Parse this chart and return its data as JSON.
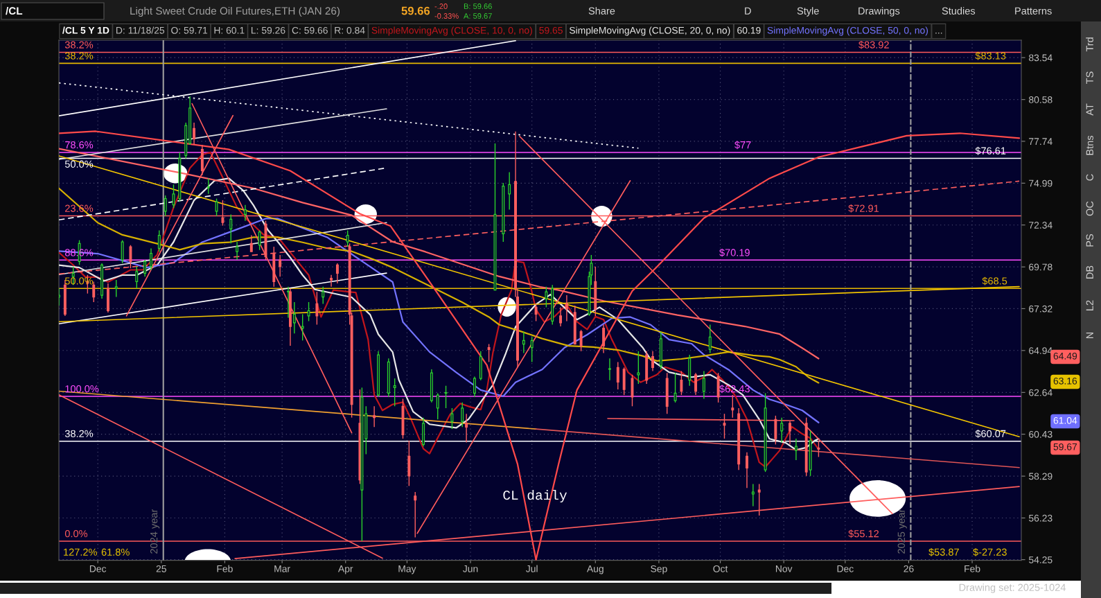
{
  "chart_data": {
    "type": "candlestick",
    "title": "Light Sweet Crude Oil Futures,ETH (JAN 26)",
    "subtitle": "/CL 5 Y 1D",
    "x": [
      "2024-11-12",
      "2024-11-15",
      "2024-11-19",
      "2024-11-22",
      "2024-11-26",
      "2024-11-29",
      "2024-12-03",
      "2024-12-06",
      "2024-12-10",
      "2024-12-13",
      "2024-12-17",
      "2024-12-20",
      "2024-12-24",
      "2024-12-27",
      "2024-12-31",
      "2025-01-03",
      "2025-01-07",
      "2025-01-10",
      "2025-01-13",
      "2025-01-15",
      "2025-01-17",
      "2025-01-21",
      "2025-01-24",
      "2025-01-28",
      "2025-01-31",
      "2025-02-04",
      "2025-02-07",
      "2025-02-11",
      "2025-02-14",
      "2025-02-18",
      "2025-02-21",
      "2025-02-25",
      "2025-02-28",
      "2025-03-04",
      "2025-03-05",
      "2025-03-07",
      "2025-03-11",
      "2025-03-14",
      "2025-03-18",
      "2025-03-21",
      "2025-03-25",
      "2025-03-28",
      "2025-04-02",
      "2025-04-03",
      "2025-04-04",
      "2025-04-08",
      "2025-04-09",
      "2025-04-11",
      "2025-04-15",
      "2025-04-17",
      "2025-04-22",
      "2025-04-25",
      "2025-04-29",
      "2025-05-02",
      "2025-05-05",
      "2025-05-09",
      "2025-05-13",
      "2025-05-16",
      "2025-05-20",
      "2025-05-23",
      "2025-05-28",
      "2025-05-30",
      "2025-06-03",
      "2025-06-06",
      "2025-06-10",
      "2025-06-13",
      "2025-06-17",
      "2025-06-20",
      "2025-06-23",
      "2025-06-24",
      "2025-06-27",
      "2025-07-01",
      "2025-07-03",
      "2025-07-08",
      "2025-07-11",
      "2025-07-15",
      "2025-07-18",
      "2025-07-22",
      "2025-07-25",
      "2025-07-29",
      "2025-07-30",
      "2025-08-01",
      "2025-08-05",
      "2025-08-08",
      "2025-08-12",
      "2025-08-15",
      "2025-08-19",
      "2025-08-22",
      "2025-08-26",
      "2025-08-29",
      "2025-09-02",
      "2025-09-05",
      "2025-09-09",
      "2025-09-12",
      "2025-09-16",
      "2025-09-19",
      "2025-09-23",
      "2025-09-26",
      "2025-09-30",
      "2025-10-03",
      "2025-10-07",
      "2025-10-10",
      "2025-10-14",
      "2025-10-17",
      "2025-10-20",
      "2025-10-23",
      "2025-10-28",
      "2025-10-31",
      "2025-11-04",
      "2025-11-07",
      "2025-11-12",
      "2025-11-14",
      "2025-11-18"
    ],
    "ohlc": [
      [
        68.0,
        68.5,
        67.5,
        68.1
      ],
      [
        68.7,
        69.0,
        66.9,
        67.0
      ],
      [
        69.2,
        69.8,
        68.7,
        69.4
      ],
      [
        70.1,
        71.4,
        69.9,
        71.2
      ],
      [
        68.9,
        69.3,
        68.2,
        68.8
      ],
      [
        68.7,
        68.9,
        67.7,
        68.0
      ],
      [
        68.1,
        70.0,
        67.9,
        69.9
      ],
      [
        68.5,
        68.8,
        67.1,
        67.2
      ],
      [
        68.5,
        69.0,
        68.0,
        68.6
      ],
      [
        70.2,
        71.4,
        70.0,
        71.3
      ],
      [
        71.0,
        71.1,
        69.7,
        70.1
      ],
      [
        68.9,
        69.8,
        68.5,
        69.5
      ],
      [
        69.4,
        70.2,
        69.2,
        70.1
      ],
      [
        69.8,
        70.9,
        69.6,
        70.6
      ],
      [
        70.9,
        72.0,
        70.7,
        71.7
      ],
      [
        73.2,
        74.2,
        72.9,
        74.0
      ],
      [
        73.6,
        74.9,
        73.4,
        74.3
      ],
      [
        74.0,
        77.0,
        73.8,
        76.6
      ],
      [
        76.8,
        79.0,
        76.6,
        78.8
      ],
      [
        77.6,
        80.8,
        77.5,
        80.0
      ],
      [
        78.6,
        79.0,
        77.5,
        77.9
      ],
      [
        77.2,
        77.5,
        75.5,
        75.8
      ],
      [
        74.7,
        75.3,
        74.3,
        74.7
      ],
      [
        73.2,
        74.0,
        72.9,
        73.8
      ],
      [
        72.8,
        73.9,
        72.3,
        72.5
      ],
      [
        72.1,
        73.0,
        71.2,
        72.7
      ],
      [
        70.7,
        71.3,
        70.2,
        71.0
      ],
      [
        73.0,
        73.6,
        72.6,
        73.3
      ],
      [
        71.2,
        71.7,
        70.7,
        70.7
      ],
      [
        71.1,
        72.0,
        70.8,
        71.9
      ],
      [
        72.4,
        72.6,
        70.2,
        70.4
      ],
      [
        70.6,
        71.0,
        68.6,
        68.9
      ],
      [
        70.2,
        70.5,
        69.2,
        69.8
      ],
      [
        68.3,
        68.6,
        66.8,
        68.3
      ],
      [
        68.3,
        68.5,
        65.2,
        66.3
      ],
      [
        66.5,
        67.7,
        65.9,
        67.0
      ],
      [
        66.2,
        67.0,
        65.5,
        66.3
      ],
      [
        66.9,
        67.7,
        66.6,
        67.2
      ],
      [
        67.6,
        68.3,
        66.4,
        66.9
      ],
      [
        68.0,
        68.6,
        67.6,
        68.3
      ],
      [
        69.1,
        69.3,
        68.6,
        69.0
      ],
      [
        69.9,
        70.0,
        68.8,
        69.4
      ],
      [
        71.3,
        72.0,
        71.0,
        71.7
      ],
      [
        71.0,
        71.2,
        66.4,
        67.0
      ],
      [
        66.9,
        67.1,
        61.3,
        62.0
      ],
      [
        61.0,
        62.8,
        57.9,
        58.1
      ],
      [
        57.6,
        62.9,
        55.12,
        62.4
      ],
      [
        60.2,
        61.9,
        59.4,
        61.5
      ],
      [
        61.4,
        61.9,
        60.8,
        61.3
      ],
      [
        62.5,
        64.9,
        62.4,
        64.7
      ],
      [
        62.6,
        64.5,
        62.4,
        64.3
      ],
      [
        62.9,
        63.4,
        61.9,
        63.0
      ],
      [
        61.9,
        62.3,
        60.2,
        60.4
      ],
      [
        59.3,
        60.1,
        57.8,
        58.3
      ],
      [
        57.3,
        57.5,
        55.3,
        57.1
      ],
      [
        59.9,
        61.3,
        59.8,
        61.0
      ],
      [
        62.2,
        63.9,
        62.1,
        63.7
      ],
      [
        61.8,
        62.6,
        61.2,
        62.5
      ],
      [
        62.6,
        63.0,
        61.8,
        62.6
      ],
      [
        61.1,
        61.8,
        60.7,
        61.5
      ],
      [
        61.1,
        62.1,
        60.8,
        61.8
      ],
      [
        61.0,
        61.5,
        60.0,
        60.8
      ],
      [
        62.6,
        63.5,
        62.4,
        63.4
      ],
      [
        63.4,
        64.9,
        63.3,
        64.6
      ],
      [
        65.1,
        65.3,
        64.3,
        65.0
      ],
      [
        68.4,
        77.6,
        68.4,
        73.0
      ],
      [
        71.8,
        75.0,
        71.3,
        74.8
      ],
      [
        74.3,
        75.7,
        73.3,
        74.9
      ],
      [
        75.1,
        78.4,
        68.0,
        68.5
      ],
      [
        68.0,
        68.5,
        64.0,
        64.4
      ],
      [
        65.3,
        66.0,
        64.8,
        65.5
      ],
      [
        65.1,
        65.7,
        64.3,
        65.5
      ],
      [
        67.4,
        67.6,
        66.6,
        67.0
      ],
      [
        67.9,
        68.6,
        67.4,
        68.3
      ],
      [
        66.6,
        68.7,
        66.4,
        68.5
      ],
      [
        66.9,
        67.4,
        66.3,
        66.5
      ],
      [
        67.6,
        68.1,
        66.6,
        67.3
      ],
      [
        67.1,
        67.5,
        65.3,
        65.3
      ],
      [
        66.0,
        66.1,
        64.9,
        65.2
      ],
      [
        67.0,
        69.5,
        66.9,
        69.2
      ],
      [
        69.3,
        70.5,
        68.7,
        70.0
      ],
      [
        68.9,
        69.8,
        66.9,
        67.3
      ],
      [
        66.2,
        66.4,
        64.8,
        65.2
      ],
      [
        63.9,
        64.5,
        63.3,
        63.9
      ],
      [
        64.0,
        64.3,
        62.8,
        63.2
      ],
      [
        63.9,
        64.0,
        62.5,
        62.8
      ],
      [
        63.4,
        63.6,
        61.9,
        62.4
      ],
      [
        63.6,
        64.9,
        63.1,
        63.7
      ],
      [
        64.7,
        64.9,
        63.1,
        63.3
      ],
      [
        64.6,
        64.9,
        63.8,
        64.0
      ],
      [
        64.1,
        66.0,
        63.9,
        65.6
      ],
      [
        63.4,
        63.7,
        61.5,
        61.9
      ],
      [
        62.2,
        63.7,
        62.1,
        62.6
      ],
      [
        63.3,
        63.8,
        62.5,
        62.7
      ],
      [
        63.3,
        64.7,
        63.0,
        64.5
      ],
      [
        63.6,
        63.7,
        62.5,
        62.7
      ],
      [
        62.7,
        63.8,
        62.3,
        63.4
      ],
      [
        65.0,
        66.4,
        64.8,
        65.7
      ],
      [
        63.5,
        63.7,
        62.1,
        62.4
      ],
      [
        61.0,
        61.5,
        60.2,
        60.9
      ],
      [
        61.8,
        62.5,
        61.3,
        61.7
      ],
      [
        61.5,
        61.8,
        58.6,
        58.9
      ],
      [
        59.3,
        59.5,
        57.7,
        58.7
      ],
      [
        57.4,
        57.9,
        56.8,
        57.5
      ],
      [
        57.6,
        57.9,
        56.35,
        57.5
      ],
      [
        58.6,
        62.6,
        58.5,
        61.8
      ],
      [
        61.2,
        61.4,
        59.9,
        60.2
      ],
      [
        60.6,
        61.3,
        60.0,
        61.0
      ],
      [
        61.0,
        61.1,
        59.9,
        60.6
      ],
      [
        59.6,
        60.2,
        59.1,
        59.8
      ],
      [
        61.0,
        61.3,
        58.3,
        58.5
      ],
      [
        58.6,
        60.6,
        58.3,
        60.1
      ],
      [
        59.71,
        60.1,
        59.26,
        59.66
      ]
    ],
    "series": [
      {
        "type": "line",
        "name": "SimpleMovingAvg (CLOSE, 10, 0, no)",
        "color": "#c0161c",
        "x": [
          "2024-11-12",
          "2024-11-19",
          "2024-11-25",
          "2024-12-01",
          "2024-12-06",
          "2024-12-17",
          "2024-12-23",
          "2024-12-30",
          "2025-01-07",
          "2025-01-15",
          "2025-01-21",
          "2025-01-25",
          "2025-01-30",
          "2025-02-07",
          "2025-02-12",
          "2025-02-15",
          "2025-02-20",
          "2025-02-27",
          "2025-03-05",
          "2025-03-14",
          "2025-03-20",
          "2025-03-26",
          "2025-04-06",
          "2025-04-12",
          "2025-04-15",
          "2025-04-19",
          "2025-04-24",
          "2025-04-29",
          "2025-05-03",
          "2025-05-09",
          "2025-05-12",
          "2025-05-17",
          "2025-05-22",
          "2025-05-27",
          "2025-06-01",
          "2025-06-06",
          "2025-06-09",
          "2025-06-12",
          "2025-06-16",
          "2025-06-21",
          "2025-06-23",
          "2025-06-27",
          "2025-06-29",
          "2025-07-01",
          "2025-07-03",
          "2025-07-07",
          "2025-07-12",
          "2025-07-18",
          "2025-07-23",
          "2025-07-28",
          "2025-08-01",
          "2025-08-05",
          "2025-08-09",
          "2025-08-17",
          "2025-08-23",
          "2025-08-31",
          "2025-09-04",
          "2025-09-12",
          "2025-09-18",
          "2025-09-23",
          "2025-09-27",
          "2025-10-02",
          "2025-10-08",
          "2025-10-14",
          "2025-10-20",
          "2025-10-23",
          "2025-10-30",
          "2025-11-02",
          "2025-11-05",
          "2025-11-10",
          "2025-11-14",
          "2025-11-18"
        ],
        "values": [
          70.65,
          69.89,
          69.17,
          69.17,
          68.88,
          69.6,
          69.6,
          70.52,
          73.44,
          75.97,
          76.85,
          77.01,
          75.63,
          73.44,
          72.66,
          72.34,
          71.73,
          71.58,
          70.65,
          69.29,
          66.84,
          68.4,
          68.26,
          65.56,
          62.51,
          61.68,
          62.0,
          62.12,
          61.21,
          59.68,
          59.43,
          60.44,
          61.46,
          62.05,
          61.86,
          61.72,
          62.77,
          64.85,
          66.97,
          68.4,
          70.13,
          70.04,
          69.17,
          68.29,
          67.26,
          66.56,
          66.86,
          67.57,
          66.56,
          66.13,
          66.86,
          66.69,
          65.56,
          63.73,
          63.19,
          63.6,
          64.02,
          63.74,
          63.19,
          63.47,
          63.88,
          63.33,
          62.51,
          61.21,
          58.99,
          58.75,
          59.59,
          60.22,
          60.82,
          60.45,
          60.22,
          59.65
        ]
      },
      {
        "type": "line",
        "name": "SimpleMovingAvg (CLOSE, 20, 0, no)",
        "color": "#e6e6e6",
        "x": [
          "2024-11-12",
          "2024-11-22",
          "2024-12-04",
          "2024-12-13",
          "2024-12-20",
          "2024-12-30",
          "2025-01-07",
          "2025-01-17",
          "2025-01-27",
          "2025-02-03",
          "2025-02-10",
          "2025-02-15",
          "2025-02-22",
          "2025-02-27",
          "2025-03-05",
          "2025-03-11",
          "2025-03-17",
          "2025-04-04",
          "2025-04-13",
          "2025-04-17",
          "2025-04-24",
          "2025-04-27",
          "2025-05-04",
          "2025-05-12",
          "2025-05-25",
          "2025-05-31",
          "2025-06-06",
          "2025-06-12",
          "2025-06-18",
          "2025-06-23",
          "2025-07-03",
          "2025-07-10",
          "2025-07-18",
          "2025-07-23",
          "2025-07-30",
          "2025-08-03",
          "2025-08-12",
          "2025-08-24",
          "2025-08-28",
          "2025-09-06",
          "2025-09-17",
          "2025-09-26",
          "2025-10-05",
          "2025-10-12",
          "2025-10-20",
          "2025-10-25",
          "2025-11-02",
          "2025-11-07",
          "2025-11-12",
          "2025-11-16",
          "2025-11-18"
        ],
        "values": [
          69.89,
          69.74,
          68.94,
          69.29,
          69.29,
          69.89,
          71.29,
          73.89,
          75.15,
          75.3,
          74.52,
          73.58,
          72.04,
          71.29,
          70.34,
          69.29,
          68.44,
          67.98,
          66.97,
          65.85,
          64.85,
          63.33,
          61.61,
          60.95,
          60.76,
          61.21,
          62.12,
          63.05,
          64.71,
          66.27,
          67.57,
          68.14,
          67.26,
          66.69,
          67.12,
          67.4,
          66.69,
          65.12,
          64.44,
          63.74,
          63.47,
          63.6,
          63.05,
          62.51,
          61.21,
          60.19,
          59.98,
          59.62,
          59.74,
          60.09,
          60.19
        ]
      },
      {
        "type": "line",
        "name": "SimpleMovingAvg (CLOSE, 50, 0, no)",
        "color": "#7373ff",
        "x": [
          "2024-11-12",
          "2024-12-01",
          "2024-12-25",
          "2025-01-07",
          "2025-01-21",
          "2025-02-03",
          "2025-02-21",
          "2025-02-27",
          "2025-03-23",
          "2025-04-10",
          "2025-04-24",
          "2025-04-29",
          "2025-05-12",
          "2025-05-25",
          "2025-06-06",
          "2025-06-17",
          "2025-06-23",
          "2025-07-06",
          "2025-07-17",
          "2025-07-28",
          "2025-08-09",
          "2025-08-18",
          "2025-08-28",
          "2025-09-06",
          "2025-09-17",
          "2025-09-23",
          "2025-10-05",
          "2025-10-17",
          "2025-10-25",
          "2025-11-01",
          "2025-11-10",
          "2025-11-18"
        ],
        "values": [
          70.73,
          70.58,
          69.74,
          70.04,
          71.28,
          71.88,
          72.74,
          72.74,
          71.58,
          70.04,
          68.88,
          66.55,
          64.86,
          63.73,
          62.77,
          62.44,
          63.19,
          63.89,
          65.11,
          65.83,
          66.76,
          66.84,
          66.39,
          65.55,
          65.32,
          64.7,
          63.88,
          62.77,
          62.27,
          62.03,
          61.68,
          61.04
        ]
      },
      {
        "type": "line",
        "color": "#ff6464",
        "x": [
          "2024-11-12",
          "2025-01-14",
          "2025-02-15",
          "2025-03-11",
          "2025-04-04",
          "2025-04-24",
          "2025-05-10",
          "2025-06-15",
          "2025-07-05",
          "2025-07-14",
          "2025-08-05",
          "2025-09-10",
          "2025-10-13",
          "2025-10-30",
          "2025-11-10",
          "2025-11-18"
        ],
        "values": [
          77.24,
          75.56,
          74.66,
          73.75,
          72.95,
          71.3,
          70.69,
          69.21,
          68.59,
          68.4,
          67.77,
          66.95,
          66.3,
          65.86,
          65.08,
          64.49
        ]
      },
      {
        "type": "line",
        "color": "#d6b000",
        "x": [
          "2024-11-12",
          "2024-12-01",
          "2024-12-13",
          "2024-12-30",
          "2025-01-10",
          "2025-01-21",
          "2025-02-03",
          "2025-02-15",
          "2025-02-27",
          "2025-03-11",
          "2025-03-23",
          "2025-04-04",
          "2025-04-15",
          "2025-04-24",
          "2025-05-17",
          "2025-05-28",
          "2025-06-10",
          "2025-06-15",
          "2025-06-25",
          "2025-07-06",
          "2025-07-19",
          "2025-07-31",
          "2025-08-12",
          "2025-08-24",
          "2025-08-31",
          "2025-09-12",
          "2025-09-23",
          "2025-10-05",
          "2025-10-17",
          "2025-10-25",
          "2025-10-30",
          "2025-11-07",
          "2025-11-13",
          "2025-11-18"
        ],
        "values": [
          74.66,
          72.48,
          71.73,
          71.19,
          70.82,
          71.19,
          71.27,
          71.58,
          71.58,
          71.27,
          70.91,
          70.72,
          70.21,
          69.74,
          68.35,
          67.69,
          66.84,
          66.4,
          66.04,
          65.61,
          65.2,
          65.13,
          64.97,
          64.64,
          64.36,
          64.47,
          64.64,
          64.86,
          64.67,
          64.59,
          64.43,
          64.04,
          63.47,
          63.16
        ]
      },
      {
        "type": "line",
        "color": "#ffffff",
        "x": [
          "2024-11-12",
          "2025-06-23"
        ],
        "values": [
          79.46,
          84.76
        ]
      },
      {
        "type": "line",
        "color": "#ffffff",
        "line_style": "dotted",
        "x": [
          "2024-11-12",
          "2025-08-22"
        ],
        "values": [
          81.74,
          77.28
        ]
      },
      {
        "type": "line",
        "color": "#e0e0e0",
        "x": [
          "2024-11-12",
          "2025-04-21"
        ],
        "values": [
          76.54,
          79.94
        ]
      },
      {
        "type": "line",
        "color": "#ffffff",
        "line_style": "dashed",
        "x": [
          "2024-11-12",
          "2025-04-21"
        ],
        "values": [
          72.66,
          75.98
        ]
      },
      {
        "type": "line",
        "color": "#e0e0e0",
        "x": [
          "2024-11-12",
          "2025-04-21"
        ],
        "values": [
          69.32,
          72.49
        ]
      },
      {
        "type": "line",
        "color": "#ffffff",
        "x": [
          "2024-11-12",
          "2025-04-21"
        ],
        "values": [
          66.45,
          69.41
        ]
      },
      {
        "type": "line",
        "color": "#ff5f5f",
        "line_style": "dashed",
        "x": [
          "2024-11-12",
          "2026-02-24"
        ],
        "values": [
          69.36,
          75.12
        ]
      },
      {
        "type": "line",
        "color": "#f2c400",
        "x": [
          "2024-11-12",
          "2026-02-24"
        ],
        "values": [
          76.77,
          60.3
        ]
      },
      {
        "type": "line",
        "color": "#f2c400",
        "x": [
          "2024-11-12",
          "2026-02-24"
        ],
        "values": [
          66.57,
          68.61
        ]
      },
      {
        "type": "line",
        "color": "#f0a030",
        "x": [
          "2024-11-12",
          "2025-07-03"
        ],
        "values": [
          62.71,
          60.7
        ]
      },
      {
        "type": "line",
        "color": "#e05555",
        "x": [
          "2025-07-03",
          "2026-02-24"
        ],
        "values": [
          60.7,
          58.72
        ]
      },
      {
        "type": "line",
        "color": "#ff5c5c",
        "x": [
          "2025-02-06",
          "2026-02-24"
        ],
        "values": [
          54.3,
          57.77
        ]
      },
      {
        "type": "line",
        "color": "#ff5c5c",
        "x": [
          "2025-01-16",
          "2025-04-04"
        ],
        "values": [
          80.3,
          60.5
        ]
      },
      {
        "type": "line",
        "color": "#ff5c5c",
        "x": [
          "2024-12-15",
          "2025-02-05"
        ],
        "values": [
          66.9,
          79.48
        ]
      },
      {
        "type": "line",
        "color": "#ff5c5c",
        "x": [
          "2025-06-25",
          "2025-12-24"
        ],
        "values": [
          78.07,
          56.44
        ]
      },
      {
        "type": "line",
        "color": "#ff5c5c",
        "x": [
          "2025-05-06",
          "2025-08-18"
        ],
        "values": [
          55.49,
          75.15
        ]
      },
      {
        "type": "line",
        "color": "#ff5c5c",
        "x": [
          "2024-11-12",
          "2025-04-19"
        ],
        "values": [
          62.51,
          54.32
        ]
      },
      {
        "type": "line",
        "color": "#ff5c5c",
        "x": [
          "2025-08-07",
          "2025-11-06"
        ],
        "values": [
          61.25,
          61.14
        ]
      },
      {
        "type": "line",
        "color": "#ff4a4a",
        "x": [
          "2024-11-12",
          "2024-11-30",
          "2025-02-03",
          "2025-03-05",
          "2025-04-08",
          "2025-04-23",
          "2025-05-15",
          "2025-06-09",
          "2025-06-24",
          "2025-07-03"
        ],
        "values": [
          78.27,
          78.41,
          77.2,
          75.79,
          73.04,
          72.27,
          68.37,
          64.13,
          58.89,
          54.25
        ]
      },
      {
        "type": "line",
        "color": "#ff4a4a",
        "x": [
          "2025-07-03",
          "2025-07-14",
          "2025-07-23",
          "2025-08-19",
          "2025-08-31",
          "2025-09-23",
          "2025-10-25",
          "2025-11-18",
          "2025-12-31",
          "2026-01-26",
          "2026-02-24"
        ],
        "values": [
          54.25,
          58.89,
          62.77,
          68.35,
          69.78,
          72.77,
          75.3,
          76.69,
          78.11,
          78.28,
          77.95
        ]
      }
    ],
    "xlim": [
      "2024-11-12",
      "2026-02-25"
    ],
    "xticks": [
      {
        "value": "2024-12-01",
        "label": "Dec"
      },
      {
        "value": "2025-01-01",
        "label": "25"
      },
      {
        "value": "2025-02-01",
        "label": "Feb"
      },
      {
        "value": "2025-03-01",
        "label": "Mar"
      },
      {
        "value": "2025-04-01",
        "label": "Apr"
      },
      {
        "value": "2025-05-01",
        "label": "May"
      },
      {
        "value": "2025-06-01",
        "label": "Jun"
      },
      {
        "value": "2025-07-01",
        "label": "Jul"
      },
      {
        "value": "2025-08-01",
        "label": "Aug"
      },
      {
        "value": "2025-09-01",
        "label": "Sep"
      },
      {
        "value": "2025-10-01",
        "label": "Oct"
      },
      {
        "value": "2025-11-01",
        "label": "Nov"
      },
      {
        "value": "2025-12-01",
        "label": "Dec"
      },
      {
        "value": "2026-01-01",
        "label": "26"
      },
      {
        "value": "2026-02-01",
        "label": "Feb"
      }
    ],
    "ylim": [
      54.22,
      84.8
    ],
    "yticks": [
      54.25,
      56.23,
      58.29,
      60.43,
      62.64,
      64.94,
      67.32,
      69.78,
      72.34,
      74.99,
      77.74,
      80.58,
      83.54
    ],
    "log": true,
    "grid": true,
    "legend": "top right",
    "ref_lines": [
      {
        "axis": "y",
        "value": 83.92,
        "color": "#ff5a5a"
      },
      {
        "axis": "y",
        "value": 83.13,
        "color": "#e6b800"
      },
      {
        "axis": "y",
        "value": 77,
        "color": "#ff4dff"
      },
      {
        "axis": "y",
        "value": 76.61,
        "color": "#ffffff"
      },
      {
        "axis": "y",
        "value": 72.91,
        "color": "#ff5a5a"
      },
      {
        "axis": "y",
        "value": 70.19,
        "color": "#ff4dff"
      },
      {
        "axis": "y",
        "value": 68.5,
        "color": "#e6b800"
      },
      {
        "axis": "y",
        "value": 62.43,
        "color": "#ff4dff"
      },
      {
        "axis": "y",
        "value": 60.07,
        "color": "#ffffff"
      },
      {
        "axis": "y",
        "value": 55.12,
        "color": "#ff5a5a"
      },
      {
        "axis": "x",
        "value": "2025-01-02",
        "label": "2024 year",
        "color": "#a0a0a0"
      },
      {
        "axis": "x",
        "value": "2026-01-02",
        "label": "2025 year",
        "color": "#a0a0a0",
        "line_style": "dashed"
      }
    ],
    "annotations": [
      "/CL",
      "59.66",
      "-.20",
      "-0.33%",
      "B: 59.66",
      "A: 59.67",
      "Share",
      "D",
      "Style",
      "Drawings",
      "Studies",
      "Patterns",
      "D: 11/18/25",
      "O: 59.71",
      "H: 60.1",
      "L: 59.26",
      "C: 59.66",
      "R: 0.84",
      "59.65",
      "60.19",
      "...",
      "Trd",
      "TS",
      "AT",
      "Btns",
      "C",
      "OC",
      "PS",
      "DB",
      "L2",
      "N",
      "Drawing set: 2025-1024",
      "CL daily",
      "127.2%",
      "61.8%",
      "$-27.23",
      "$53.87",
      "64.49",
      "63.16",
      "61.04",
      "59.67",
      {
        "text": "38.2%",
        "x": "2024-11-12",
        "y": 83.92
      },
      {
        "text": "38.2%",
        "x": "2024-11-12",
        "y": 83.13
      },
      {
        "text": "78.6%",
        "x": "2024-11-12",
        "y": 77
      },
      {
        "text": "50.0%",
        "x": "2024-11-12",
        "y": 76.61
      },
      {
        "text": "23.6%",
        "x": "2024-11-12",
        "y": 72.91
      },
      {
        "text": "88.6%",
        "x": "2024-11-12",
        "y": 70.19
      },
      {
        "text": "50.0%",
        "x": "2024-11-12",
        "y": 68.5
      },
      {
        "text": "100.0%",
        "x": "2024-11-12",
        "y": 62.43
      },
      {
        "text": "38.2%",
        "x": "2024-11-12",
        "y": 60.07
      },
      {
        "text": "0.0%",
        "x": "2024-11-12",
        "y": 55.12
      },
      {
        "text": "$83.92",
        "x": "2025-12-15",
        "y": 83.92
      },
      {
        "text": "$83.13",
        "x": "2026-02-10",
        "y": 83.13
      },
      {
        "text": "$77",
        "x": "2025-10-12",
        "y": 77
      },
      {
        "text": "$76.61",
        "x": "2026-02-10",
        "y": 76.61
      },
      {
        "text": "$72.91",
        "x": "2025-12-10",
        "y": 72.91
      },
      {
        "text": "$70.19",
        "x": "2025-10-08",
        "y": 70.19
      },
      {
        "text": "$68.5",
        "x": "2026-02-12",
        "y": 68.5
      },
      {
        "text": "$62.43",
        "x": "2025-10-08",
        "y": 62.43
      },
      {
        "text": "$60.07",
        "x": "2026-02-10",
        "y": 60.07
      },
      {
        "text": "$55.12",
        "x": "2025-12-10",
        "y": 55.12
      }
    ]
  }
}
